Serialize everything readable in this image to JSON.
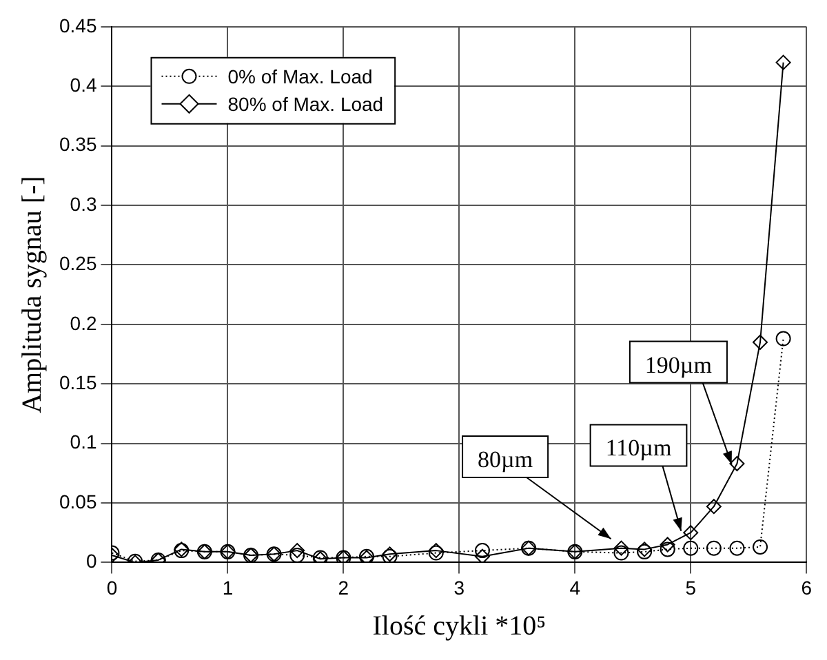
{
  "chart_data": {
    "type": "line",
    "xlabel": "Ilość cykli *10⁵",
    "ylabel": "Amplituda sygnau [-]",
    "x": [
      0,
      0.2,
      0.4,
      0.6,
      0.8,
      1.0,
      1.2,
      1.4,
      1.6,
      1.8,
      2.0,
      2.2,
      2.4,
      2.8,
      3.2,
      3.6,
      4.0,
      4.4,
      4.6,
      4.8,
      5.0,
      5.2,
      5.4,
      5.6,
      5.8
    ],
    "series": [
      {
        "name": "0% of Max. Load",
        "color": "#000000",
        "marker": "circle",
        "line_style": "dotted",
        "values": [
          0.008,
          0.001,
          0.002,
          0.01,
          0.009,
          0.009,
          0.006,
          0.007,
          0.006,
          0.004,
          0.004,
          0.005,
          0.005,
          0.008,
          0.01,
          0.012,
          0.009,
          0.008,
          0.009,
          0.011,
          0.012,
          0.012,
          0.012,
          0.013,
          0.188
        ]
      },
      {
        "name": "80% of Max. Load",
        "color": "#000000",
        "marker": "diamond",
        "line_style": "solid",
        "values": [
          0.006,
          0.0,
          0.002,
          0.011,
          0.009,
          0.009,
          0.006,
          0.007,
          0.01,
          0.003,
          0.004,
          0.004,
          0.007,
          0.01,
          0.005,
          0.012,
          0.009,
          0.012,
          0.011,
          0.015,
          0.025,
          0.047,
          0.083,
          0.185,
          0.42
        ]
      }
    ],
    "xlim": [
      0,
      6
    ],
    "xticks": [
      0,
      1,
      2,
      3,
      4,
      5,
      6
    ],
    "ylim": [
      0,
      0.45
    ],
    "yticks": [
      {
        "value": 0,
        "label": "0"
      },
      {
        "value": 0.05,
        "label": "0.05"
      },
      {
        "value": 0.1,
        "label": "0.1"
      },
      {
        "value": 0.15,
        "label": "0.15"
      },
      {
        "value": 0.2,
        "label": "0.2"
      },
      {
        "value": 0.25,
        "label": "0.25"
      },
      {
        "value": 0.3,
        "label": "0.3"
      },
      {
        "value": 0.35,
        "label": "0.35"
      },
      {
        "value": 0.4,
        "label": "0.4"
      },
      {
        "value": 0.45,
        "label": "0.45"
      }
    ],
    "grid": true,
    "legend": "top left",
    "annotations": [
      {
        "text": "80µm",
        "x": 4.35,
        "y": 0.017
      },
      {
        "text": "110µm",
        "x": 4.93,
        "y": 0.022
      },
      {
        "text": "190µm",
        "x": 5.37,
        "y": 0.078
      }
    ]
  }
}
